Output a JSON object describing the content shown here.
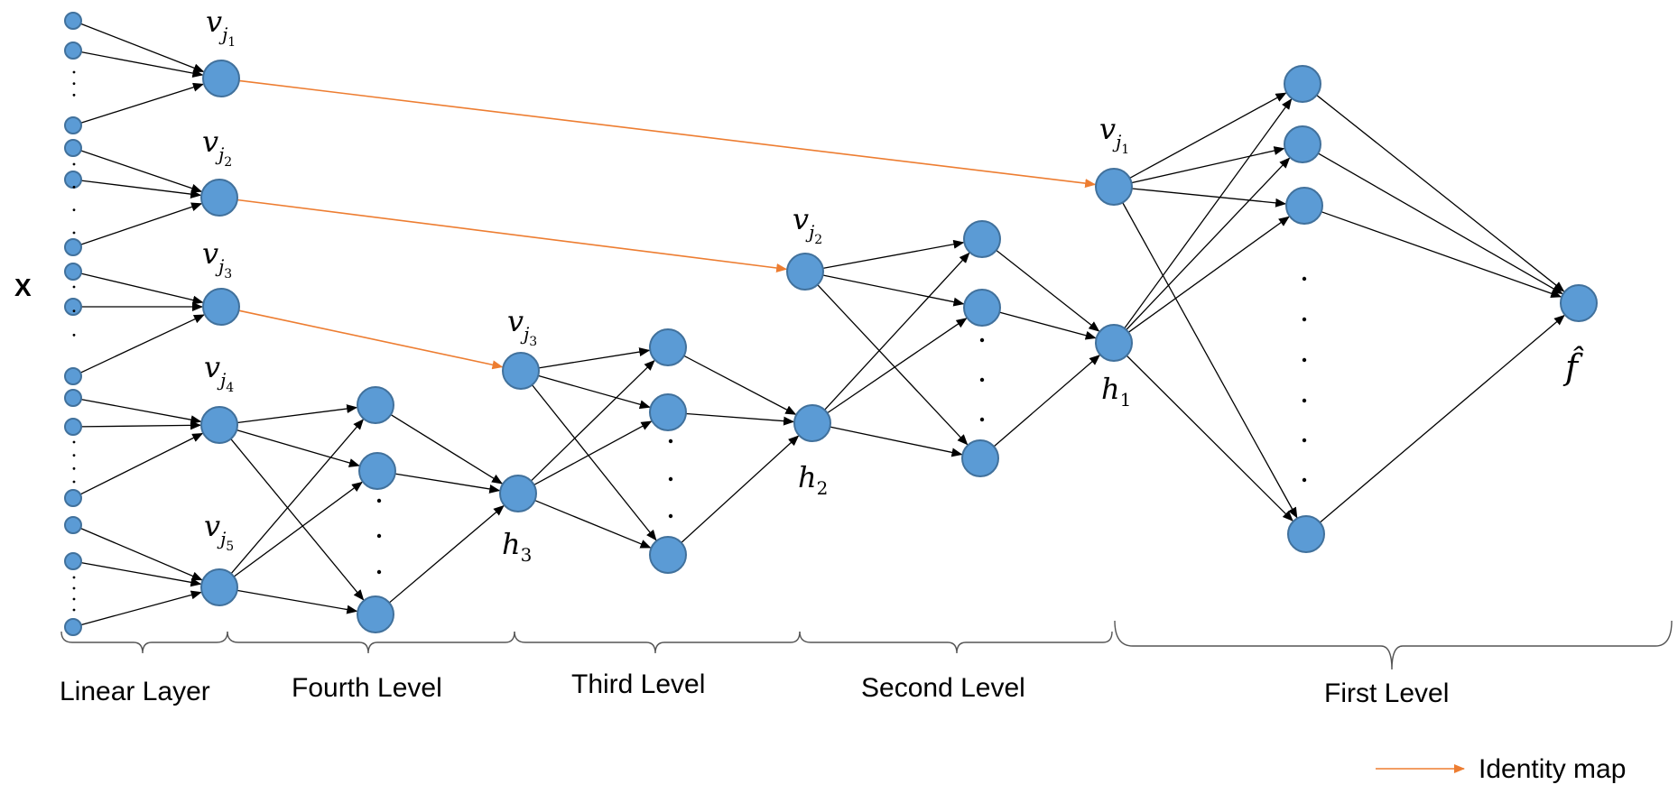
{
  "input_label": "X",
  "node_labels": {
    "v1": {
      "base": "v",
      "sub": "j",
      "subsub": "1"
    },
    "v2": {
      "base": "v",
      "sub": "j",
      "subsub": "2"
    },
    "v3": {
      "base": "v",
      "sub": "j",
      "subsub": "3"
    },
    "v4": {
      "base": "v",
      "sub": "j",
      "subsub": "4"
    },
    "v5": {
      "base": "v",
      "sub": "j",
      "subsub": "5"
    },
    "h1": {
      "base": "h",
      "sub": "1"
    },
    "h2": {
      "base": "h",
      "sub": "2"
    },
    "h3": {
      "base": "h",
      "sub": "3"
    },
    "output": "f̂"
  },
  "levels": {
    "linear": "Linear Layer",
    "fourth": "Fourth Level",
    "third": "Third Level",
    "second": "Second Level",
    "first": "First Level"
  },
  "legend": {
    "identity_label": "Identity map"
  },
  "colors": {
    "node_fill": "#5b9bd5",
    "node_stroke": "#41719c",
    "identity_arrow": "#ed7d31",
    "edge": "#000000"
  }
}
